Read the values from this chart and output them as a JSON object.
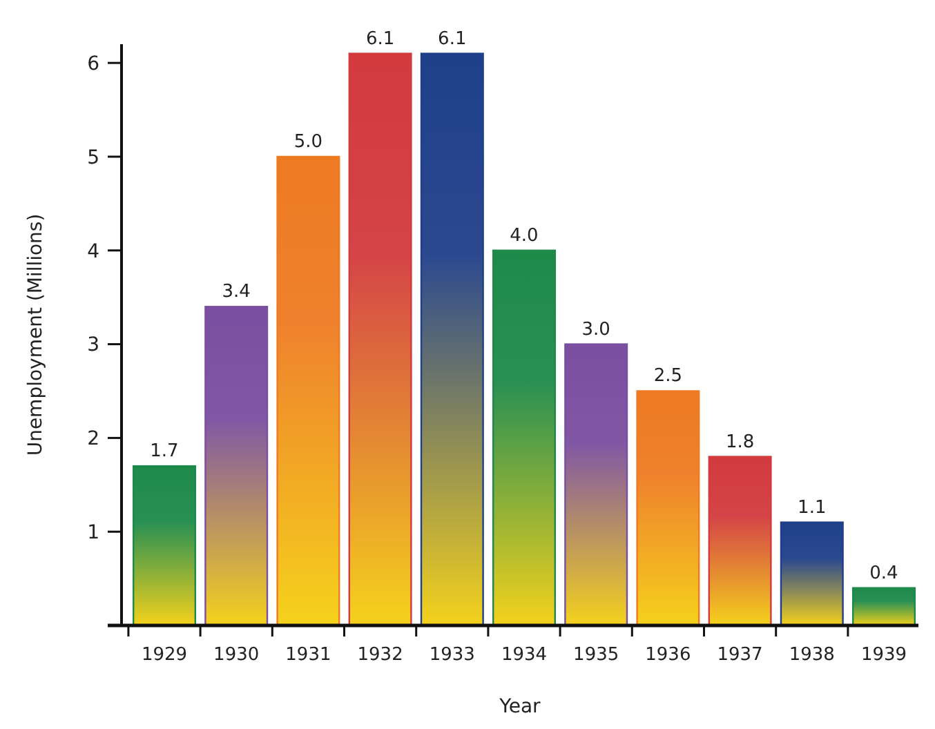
{
  "chart_data": {
    "type": "bar",
    "xlabel": "Year",
    "ylabel": "Unemployment (Millions)",
    "categories": [
      "1929",
      "1930",
      "1931",
      "1932",
      "1933",
      "1934",
      "1935",
      "1936",
      "1937",
      "1938",
      "1939"
    ],
    "values": [
      1.7,
      3.4,
      5.0,
      6.1,
      6.1,
      4.0,
      3.0,
      2.5,
      1.8,
      1.1,
      0.4
    ],
    "value_labels": [
      "1.7",
      "3.4",
      "5.0",
      "6.1",
      "6.1",
      "4.0",
      "3.0",
      "2.5",
      "1.8",
      "1.1",
      "0.4"
    ],
    "colors": [
      "#1e8a4a",
      "#7a4ea0",
      "#ee7a22",
      "#d23a3e",
      "#1f3f8a",
      "#1e8a4a",
      "#7a4ea0",
      "#ee7a22",
      "#d23a3e",
      "#1f3f8a",
      "#1e8a4a"
    ],
    "ylim": [
      0,
      6.2
    ],
    "yticks": [
      {
        "value": 0,
        "label": null
      },
      1,
      2,
      3,
      4,
      5,
      6
    ],
    "grid": false
  }
}
